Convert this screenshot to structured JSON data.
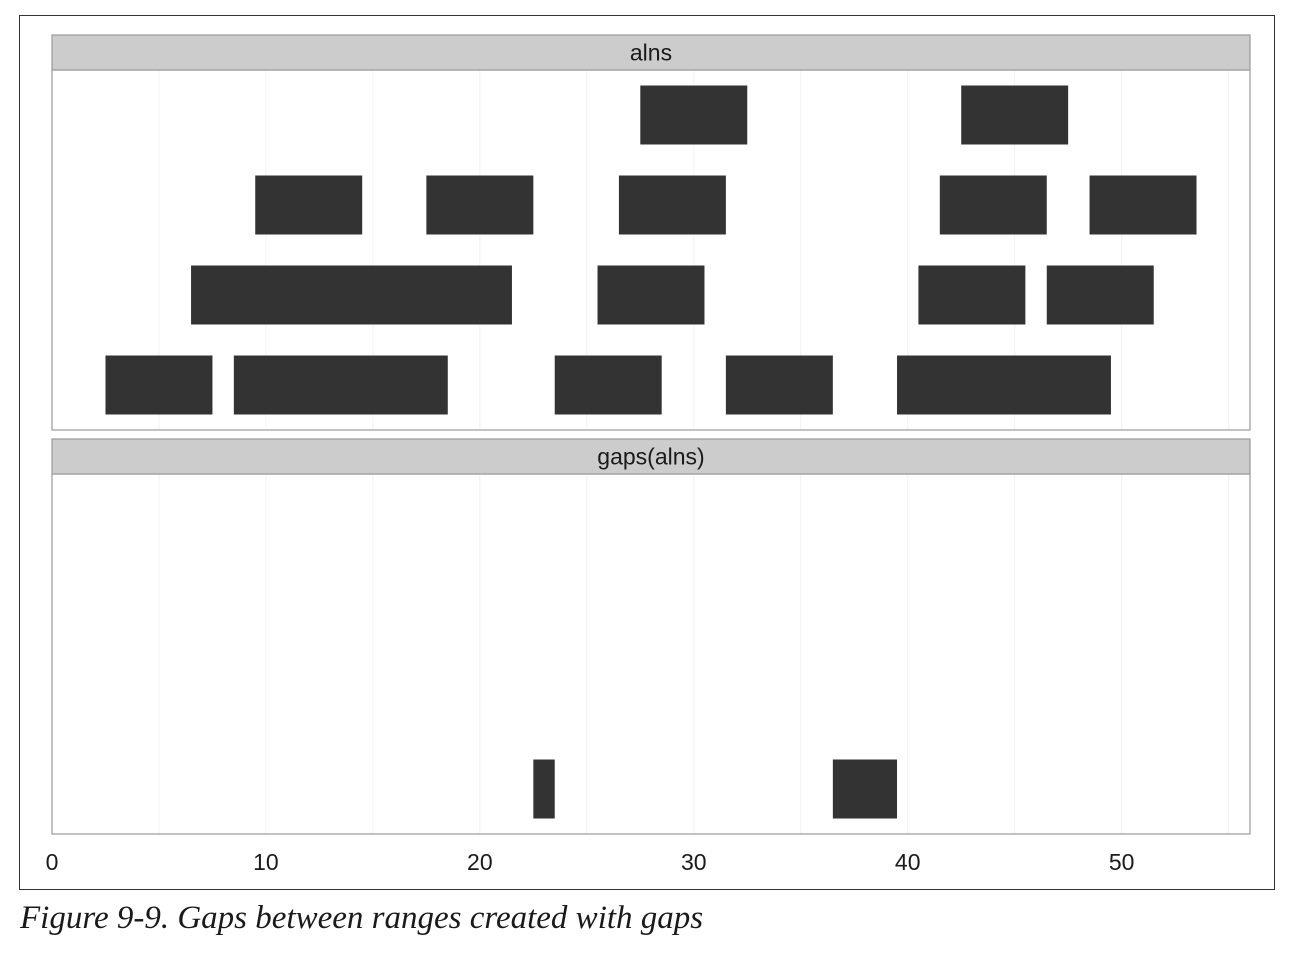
{
  "caption": "Figure 9-9. Gaps between ranges created with gaps",
  "colors": {
    "bar": "#333333",
    "strip_bg": "#cccccc",
    "panel_border": "#999999",
    "gridline": "#f2f2f2"
  },
  "chart_data": {
    "type": "bar",
    "orientation": "horizontal-ranges",
    "xlim": [
      0,
      56
    ],
    "x_ticks": [
      0,
      10,
      20,
      30,
      40,
      50
    ],
    "x_tick_labels": [
      "0",
      "10",
      "20",
      "30",
      "40",
      "50"
    ],
    "grid": "vertical, faint",
    "panels": [
      {
        "strip": "alns",
        "n_rows": 4,
        "ranges": [
          {
            "start": 27.5,
            "end": 32.5,
            "row": 4
          },
          {
            "start": 42.5,
            "end": 47.5,
            "row": 4
          },
          {
            "start": 9.5,
            "end": 14.5,
            "row": 3
          },
          {
            "start": 17.5,
            "end": 22.5,
            "row": 3
          },
          {
            "start": 26.5,
            "end": 31.5,
            "row": 3
          },
          {
            "start": 41.5,
            "end": 46.5,
            "row": 3
          },
          {
            "start": 48.5,
            "end": 53.5,
            "row": 3
          },
          {
            "start": 6.5,
            "end": 21.5,
            "row": 2
          },
          {
            "start": 25.5,
            "end": 30.5,
            "row": 2
          },
          {
            "start": 40.5,
            "end": 45.5,
            "row": 2
          },
          {
            "start": 46.5,
            "end": 51.5,
            "row": 2
          },
          {
            "start": 2.5,
            "end": 7.5,
            "row": 1
          },
          {
            "start": 8.5,
            "end": 18.5,
            "row": 1
          },
          {
            "start": 23.5,
            "end": 28.5,
            "row": 1
          },
          {
            "start": 31.5,
            "end": 36.5,
            "row": 1
          },
          {
            "start": 39.5,
            "end": 49.5,
            "row": 1
          }
        ]
      },
      {
        "strip": "gaps(alns)",
        "n_rows": 4,
        "ranges": [
          {
            "start": 22.5,
            "end": 23.5,
            "row": 1
          },
          {
            "start": 36.5,
            "end": 39.5,
            "row": 1
          }
        ]
      }
    ]
  }
}
